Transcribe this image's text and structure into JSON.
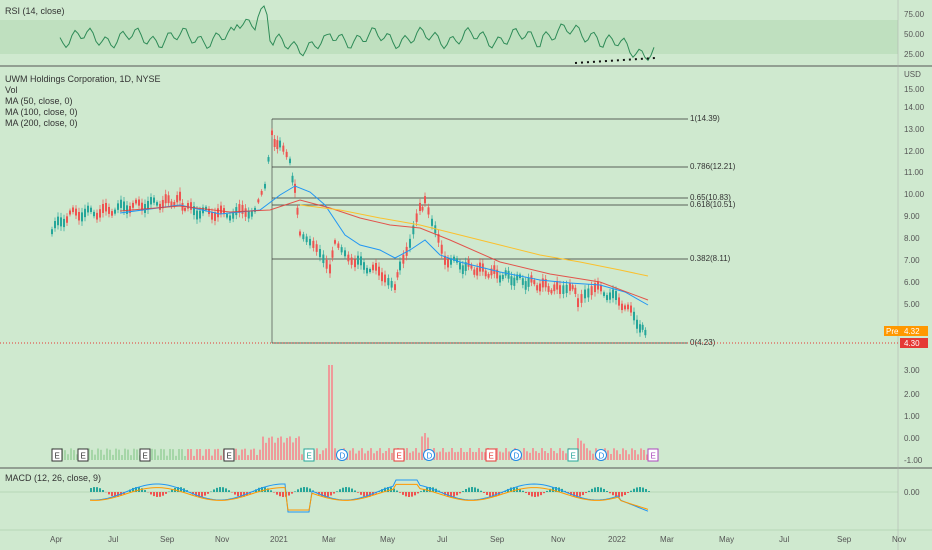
{
  "rsi_panel": {
    "title": "RSI (14, close)",
    "ticks": [
      "75.00",
      "50.00",
      "25.00"
    ]
  },
  "main_panel": {
    "legend": [
      "UWM Holdings Corporation, 1D, NYSE",
      "Vol",
      "MA (50, close, 0)",
      "MA (100, close, 0)",
      "MA (200, close, 0)"
    ],
    "currency": "USD",
    "price_ticks": [
      "15.00",
      "14.00",
      "13.00",
      "12.00",
      "11.00",
      "10.00",
      "9.00",
      "8.00",
      "7.00",
      "6.00",
      "5.00"
    ],
    "volume_ticks": [
      "3.00",
      "2.00",
      "1.00",
      "0.00",
      "-1.00"
    ],
    "pre_badge": "Pre",
    "pre_price": "4.32",
    "last_price": "4.30",
    "fib_levels": [
      {
        "label": "1(14.39)"
      },
      {
        "label": "0.786(12.21)"
      },
      {
        "label": "0.65(10.83)"
      },
      {
        "label": "0.618(10.51)"
      },
      {
        "label": "0.382(8.11)"
      },
      {
        "label": "0(4.23)"
      }
    ],
    "event_markers": [
      "E",
      "E",
      "E",
      "E",
      "E",
      "D",
      "E",
      "D",
      "E",
      "D",
      "E",
      "D",
      "E"
    ]
  },
  "macd_panel": {
    "title": "MACD (12, 26, close, 9)",
    "ticks": [
      "0.00"
    ]
  },
  "x_axis": [
    "Apr",
    "Jul",
    "Sep",
    "Nov",
    "2021",
    "Mar",
    "May",
    "Jul",
    "Sep",
    "Nov",
    "2022",
    "Mar",
    "May",
    "Jul",
    "Sep",
    "Nov"
  ],
  "colors": {
    "background": "#cfe9cf",
    "rsi_line": "#2e8b57",
    "ma50": "#2196f3",
    "ma100": "#e53935",
    "ma200": "#fbc02d",
    "last_price": "#e53935",
    "pre_badge": "#ff9800"
  }
}
